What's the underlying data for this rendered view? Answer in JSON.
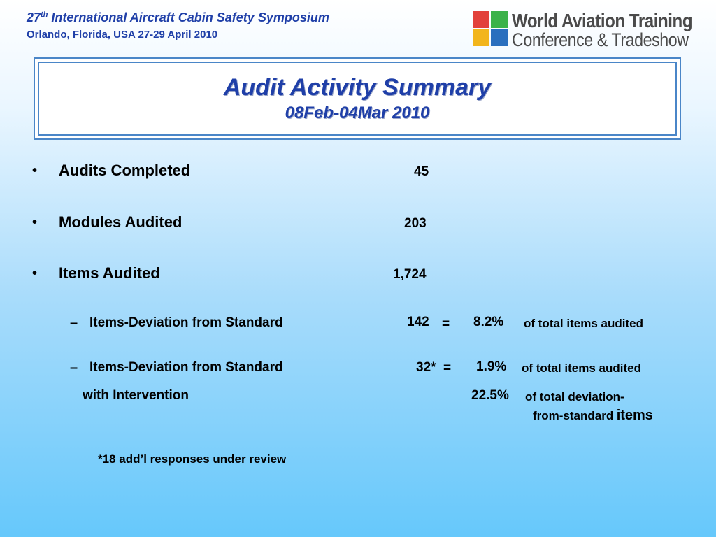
{
  "header": {
    "symposium_number": "27",
    "symposium_suffix": "th",
    "symposium_title": " International Aircraft Cabin Safety Symposium",
    "location_dates": "Orlando, Florida, USA 27-29 April 2010"
  },
  "logo": {
    "line1": "World Aviation Training",
    "line2": "Conference & Tradeshow",
    "colors": [
      "#e2413b",
      "#3bb24a",
      "#f2b51c",
      "#2a6fbe"
    ]
  },
  "title": {
    "main": "Audit Activity Summary",
    "sub": "08Feb-04Mar 2010"
  },
  "items": [
    {
      "bullet": "•",
      "label": "Audits Completed",
      "value": "45"
    },
    {
      "bullet": "•",
      "label": "Modules Audited",
      "value": "203"
    },
    {
      "bullet": "•",
      "label": "Items Audited",
      "value": "1,724"
    }
  ],
  "subitems": [
    {
      "dash": "–",
      "label": "Items-Deviation from Standard",
      "value": "142",
      "equals": "=",
      "percent": "8.2%",
      "note": "of total items audited"
    },
    {
      "dash": "–",
      "label": "Items-Deviation from Standard",
      "value": "32*",
      "equals": "=",
      "percent": "1.9%",
      "note": "of total items audited",
      "label2": "with Intervention",
      "percent2": "22.5%",
      "note2a": "of total deviation-",
      "note2b": "from-standard",
      "note2c": "items"
    }
  ],
  "footnote": "*18 add’l responses under review"
}
